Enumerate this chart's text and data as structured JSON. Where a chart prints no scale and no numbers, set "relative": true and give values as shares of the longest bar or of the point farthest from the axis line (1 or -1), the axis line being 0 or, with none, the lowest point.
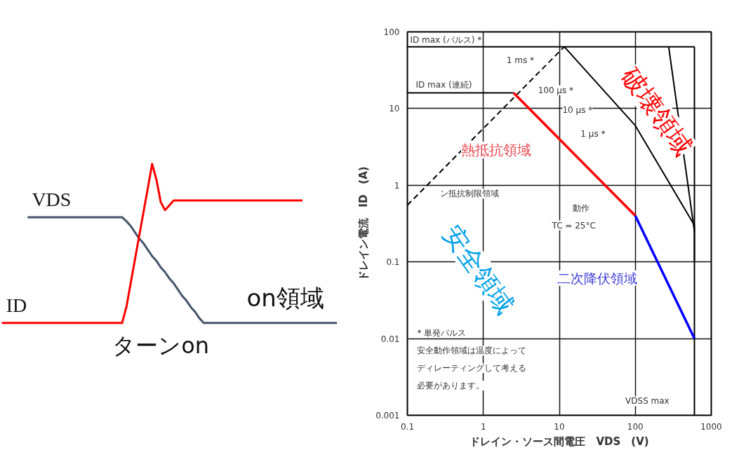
{
  "chart_data": [
    {
      "type": "line",
      "relative": true,
      "categories": [
        null,
        null,
        null,
        null,
        null,
        null,
        null,
        null,
        null,
        null,
        null,
        null,
        null,
        null,
        null,
        null,
        null,
        null,
        null,
        null,
        null,
        null,
        null,
        null,
        null,
        null,
        null,
        null,
        null,
        null,
        null,
        null,
        null,
        null,
        null,
        null,
        null,
        null,
        null,
        null,
        null,
        null,
        null,
        null,
        null,
        null,
        null,
        null,
        null,
        null,
        null,
        null,
        null,
        null,
        null,
        null,
        null,
        null,
        null,
        null,
        null,
        null,
        null,
        null,
        null,
        null,
        null,
        null,
        null,
        null,
        null,
        null,
        null,
        null,
        null,
        null,
        null,
        null,
        null
      ],
      "series": [
        {
          "name": "VDS",
          "color": "#44546a",
          "values": [
            null,
            null,
            null,
            null,
            null,
            null,
            0.665,
            0.665,
            0.665,
            0.665,
            0.665,
            0.665,
            0.665,
            0.665,
            0.665,
            0.665,
            0.665,
            0.665,
            0.665,
            0.665,
            0.665,
            0.665,
            0.665,
            0.665,
            0.665,
            0.665,
            0.665,
            0.665,
            0.665,
            0.64,
            0.61,
            0.57,
            0.53,
            0.5,
            0.46,
            0.42,
            0.39,
            0.35,
            0.32,
            0.28,
            0.25,
            0.21,
            0.17,
            0.14,
            0.1,
            0.07,
            0.03,
            0,
            0,
            0,
            0,
            0,
            0,
            0,
            0,
            0,
            0,
            0,
            0,
            0,
            0,
            0,
            0,
            0,
            0,
            0,
            0,
            0,
            0,
            0,
            0,
            0,
            0,
            0,
            0,
            0,
            0,
            0,
            0
          ]
        },
        {
          "name": "ID",
          "color": "#ff0000",
          "values": [
            0,
            0,
            0,
            0,
            0,
            0,
            0,
            0,
            0,
            0,
            0,
            0,
            0,
            0,
            0,
            0,
            0,
            0,
            0,
            0,
            0,
            0,
            0,
            0,
            0,
            0,
            0,
            0,
            0,
            0.1,
            0.25,
            0.4,
            0.55,
            0.7,
            0.85,
            1,
            0.9,
            0.76,
            0.71,
            0.74,
            0.77,
            0.77,
            0.77,
            0.77,
            0.77,
            0.77,
            0.77,
            0.77,
            0.77,
            0.77,
            0.77,
            0.77,
            0.77,
            0.77,
            0.77,
            0.77,
            0.77,
            0.77,
            0.77,
            0.77,
            0.77,
            0.77,
            0.77,
            0.77,
            0.77,
            0.77,
            0.77,
            0.77,
            0.77,
            0.77,
            0.77,
            null,
            null,
            null,
            null,
            null,
            null,
            null,
            null
          ]
        }
      ],
      "annotations": [
        "on領域",
        "ターンon"
      ]
    },
    {
      "type": "line",
      "log": "xy",
      "grid": true,
      "xlim": [
        0.1,
        1000
      ],
      "ylim": [
        0.001,
        100
      ],
      "xticks": [
        0.1,
        1,
        10,
        100,
        1000
      ],
      "yticks": [
        0.001,
        0.01,
        0.1,
        1,
        10,
        100
      ],
      "xlabel": "ドレイン・ソース間電圧　VDS　(V)",
      "ylabel": "ドレイン電流　ID　(A)",
      "series": [
        {
          "color": "#000000",
          "x": [
            0.1,
            600
          ],
          "values": [
            64,
            64
          ]
        },
        {
          "color": "#000000",
          "x": [
            0.1,
            2.5
          ],
          "values": [
            16,
            16
          ]
        },
        {
          "color": "#000000",
          "x": [
            0.1,
            11.6
          ],
          "values": [
            0.55,
            64
          ],
          "line_style": "dashed"
        },
        {
          "color": "#000000",
          "x": [
            11.6,
            100,
            600,
            600
          ],
          "values": [
            64,
            6,
            0.3,
            0.1
          ]
        },
        {
          "color": "#000000",
          "x": [
            275,
            600
          ],
          "values": [
            64,
            0.25
          ]
        },
        {
          "color": "#000000",
          "x": [
            600,
            600
          ],
          "values": [
            0.001,
            64
          ]
        },
        {
          "color": "#ff0000",
          "x": [
            2.5,
            100
          ],
          "values": [
            16,
            0.4
          ]
        },
        {
          "color": "#0000ff",
          "x": [
            100,
            600
          ],
          "values": [
            0.4,
            0.01
          ]
        }
      ],
      "annotations": [
        "ID max (パルス) *",
        "1 ms *",
        "ID max (連続)",
        "100 μs *",
        "10 μs *",
        "1 μs *",
        "熱抵抗領域",
        "ン抵抗制限領域",
        "動作",
        "TC = 25°C",
        "二次降伏領域",
        "VDSS max",
        "破壊領域",
        "安全領域",
        "* 単発パルス",
        "安全動作領域は温度によってディレーティングして考える必要があります。"
      ]
    }
  ]
}
